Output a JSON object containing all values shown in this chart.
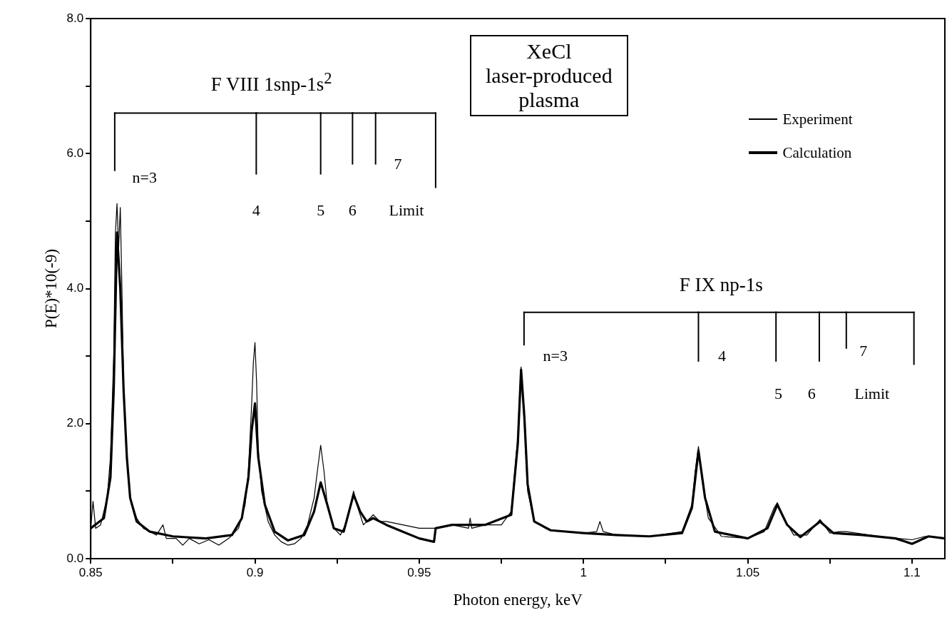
{
  "chart_data": {
    "type": "line",
    "xlabel": "Photon energy, keV",
    "ylabel": "P(E)*10(-9)",
    "xlim": [
      0.85,
      1.11
    ],
    "xticks": [
      0.85,
      {
        "value": 0.875,
        "label": null
      },
      0.9,
      {
        "value": 0.925,
        "label": null
      },
      0.95,
      {
        "value": 0.975,
        "label": null
      },
      1,
      {
        "value": 1.025,
        "label": null
      },
      1.05,
      {
        "value": 1.075,
        "label": null
      },
      1.1
    ],
    "ylim": [
      0,
      8
    ],
    "yticks": [
      {
        "value": 0,
        "label": "0.0"
      },
      {
        "value": 1,
        "label": null
      },
      {
        "value": 2,
        "label": "2.0"
      },
      {
        "value": 3,
        "label": null
      },
      {
        "value": 4,
        "label": "4.0"
      },
      {
        "value": 5,
        "label": null
      },
      {
        "value": 6,
        "label": "6.0"
      },
      {
        "value": 7,
        "label": null
      },
      {
        "value": 8,
        "label": "8.0"
      }
    ],
    "grid": false,
    "legend": "top right",
    "marker": "none",
    "line_style": "solid",
    "series": [
      {
        "name": "Experiment",
        "color": "#000000",
        "x": [
          0.85,
          0.8507,
          0.8515,
          0.853,
          0.855,
          0.856,
          0.857,
          0.8575,
          0.858,
          0.8585,
          0.859,
          0.8595,
          0.86,
          0.861,
          0.862,
          0.864,
          0.866,
          0.868,
          0.87,
          0.872,
          0.873,
          0.876,
          0.878,
          0.88,
          0.883,
          0.886,
          0.889,
          0.892,
          0.895,
          0.897,
          0.898,
          0.899,
          0.8995,
          0.9,
          0.9005,
          0.901,
          0.902,
          0.904,
          0.906,
          0.908,
          0.91,
          0.912,
          0.914,
          0.916,
          0.918,
          0.919,
          0.92,
          0.921,
          0.922,
          0.924,
          0.926,
          0.928,
          0.93,
          0.931,
          0.933,
          0.936,
          0.938,
          0.94,
          0.945,
          0.95,
          0.955,
          0.96,
          0.965,
          0.9655,
          0.966,
          0.97,
          0.975,
          0.978,
          0.98,
          0.981,
          0.982,
          0.983,
          0.985,
          0.99,
          0.995,
          1,
          1.004,
          1.005,
          1.006,
          1.01,
          1.02,
          1.03,
          1.033,
          1.034,
          1.035,
          1.036,
          1.038,
          1.042,
          1.05,
          1.055,
          1.058,
          1.059,
          1.061,
          1.064,
          1.068,
          1.072,
          1.075,
          1.078,
          1.08,
          1.09,
          1.1,
          1.104,
          1.11
        ],
        "values": [
          0.45,
          0.85,
          0.45,
          0.5,
          0.9,
          1.5,
          3.0,
          4.8,
          5.26,
          4.6,
          5.2,
          4.0,
          2.6,
          1.5,
          0.9,
          0.6,
          0.45,
          0.4,
          0.35,
          0.5,
          0.3,
          0.3,
          0.2,
          0.3,
          0.22,
          0.28,
          0.2,
          0.3,
          0.45,
          0.8,
          1.3,
          2.3,
          2.9,
          3.2,
          2.6,
          1.6,
          1.0,
          0.55,
          0.35,
          0.25,
          0.2,
          0.22,
          0.3,
          0.5,
          0.9,
          1.3,
          1.68,
          1.3,
          0.8,
          0.45,
          0.35,
          0.55,
          1.0,
          0.8,
          0.5,
          0.65,
          0.55,
          0.55,
          0.5,
          0.45,
          0.45,
          0.5,
          0.45,
          0.6,
          0.45,
          0.5,
          0.5,
          0.7,
          1.8,
          2.84,
          2.0,
          1.0,
          0.55,
          0.42,
          0.4,
          0.38,
          0.4,
          0.55,
          0.4,
          0.35,
          0.33,
          0.4,
          0.8,
          1.3,
          1.66,
          1.2,
          0.6,
          0.33,
          0.3,
          0.4,
          0.75,
          0.83,
          0.6,
          0.35,
          0.35,
          0.58,
          0.38,
          0.4,
          0.4,
          0.33,
          0.28,
          0.33,
          0.3
        ]
      },
      {
        "name": "Calculation",
        "color": "#000000",
        "x": [
          0.85,
          0.854,
          0.856,
          0.857,
          0.858,
          0.859,
          0.86,
          0.861,
          0.862,
          0.864,
          0.868,
          0.875,
          0.885,
          0.893,
          0.896,
          0.898,
          0.899,
          0.9,
          0.901,
          0.903,
          0.906,
          0.91,
          0.915,
          0.918,
          0.92,
          0.922,
          0.924,
          0.927,
          0.93,
          0.932,
          0.934,
          0.936,
          0.94,
          0.945,
          0.95,
          0.9545,
          0.955,
          0.96,
          0.97,
          0.978,
          0.98,
          0.981,
          0.982,
          0.983,
          0.985,
          0.99,
          1,
          1.01,
          1.02,
          1.03,
          1.033,
          1.035,
          1.037,
          1.04,
          1.05,
          1.056,
          1.059,
          1.062,
          1.066,
          1.072,
          1.076,
          1.085,
          1.095,
          1.1,
          1.105,
          1.11
        ],
        "values": [
          0.45,
          0.6,
          1.2,
          2.5,
          4.83,
          4.0,
          2.5,
          1.5,
          0.9,
          0.55,
          0.4,
          0.33,
          0.3,
          0.35,
          0.6,
          1.2,
          1.9,
          2.3,
          1.5,
          0.8,
          0.4,
          0.27,
          0.35,
          0.7,
          1.13,
          0.8,
          0.45,
          0.4,
          0.95,
          0.7,
          0.55,
          0.6,
          0.5,
          0.4,
          0.3,
          0.25,
          0.45,
          0.5,
          0.5,
          0.65,
          1.7,
          2.8,
          2.1,
          1.1,
          0.55,
          0.42,
          0.38,
          0.35,
          0.33,
          0.38,
          0.75,
          1.6,
          0.9,
          0.4,
          0.3,
          0.45,
          0.8,
          0.5,
          0.32,
          0.55,
          0.38,
          0.35,
          0.3,
          0.22,
          0.33,
          0.3
        ]
      }
    ],
    "annotations": [
      "F VIII  1snp-1s$^{2}$",
      "n=3",
      "4",
      "5",
      "6",
      "7",
      "Limit",
      "XeCl",
      "laser-produced",
      "plasma",
      "F IX  np-1s",
      "n=3",
      "4",
      "5",
      "6",
      "7",
      "Limit"
    ]
  }
}
